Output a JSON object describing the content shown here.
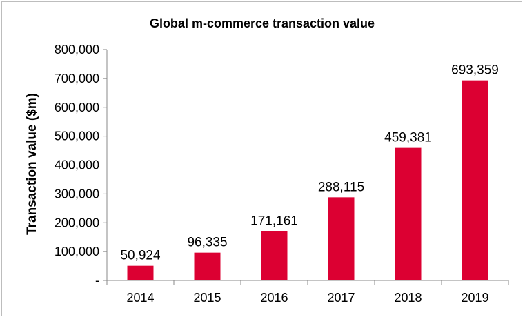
{
  "chart_data": {
    "type": "bar",
    "title": "Global m-commerce transaction value",
    "xlabel": "",
    "ylabel": "Transaction value ($m)",
    "categories": [
      "2014",
      "2015",
      "2016",
      "2017",
      "2018",
      "2019"
    ],
    "values": [
      50924,
      96335,
      171161,
      288115,
      459381,
      693359
    ],
    "data_labels": [
      "50,924",
      "96,335",
      "171,161",
      "288,115",
      "459,381",
      "693,359"
    ],
    "y_tick_labels": [
      "-",
      "100,000",
      "200,000",
      "300,000",
      "400,000",
      "500,000",
      "600,000",
      "700,000",
      "800,000"
    ],
    "ylim": [
      0,
      800000
    ],
    "y_step": 100000,
    "grid": false,
    "legend": "none",
    "colors": {
      "bar": "#dc0032",
      "axis": "#888888",
      "frame": "#bdbdbd"
    }
  }
}
